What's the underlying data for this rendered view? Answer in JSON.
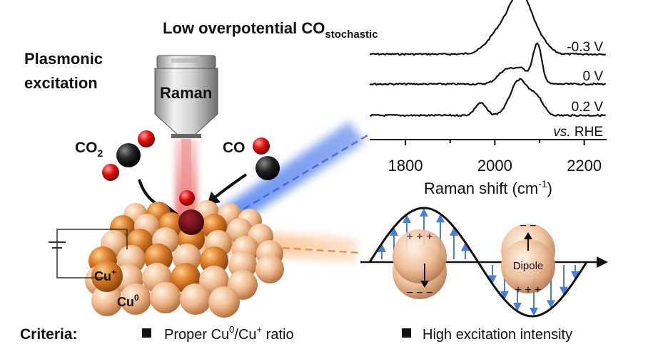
{
  "title": {
    "main": "Low overpotential CO",
    "sub": "stochastic"
  },
  "left": {
    "heading_line1": "Plasmonic",
    "heading_line2": "excitation",
    "raman_label": "Raman",
    "co2_main": "CO",
    "co2_sub": "2",
    "co_label": "CO",
    "cu_plus_main": "Cu",
    "cu_plus_sup": "+",
    "cu0_main": "Cu",
    "cu0_sup": "0"
  },
  "chart_data": {
    "type": "line",
    "xlabel": "Raman shift (cm",
    "xlabel_sup": "-1",
    "xlabel_tail": ")",
    "xlim": [
      1720,
      2250
    ],
    "x_ticks": [
      "1800",
      "2000",
      "2200"
    ],
    "reference_label_italic": "vs.",
    "reference_label_rest": " RHE",
    "series": [
      {
        "name": "-0.3 V",
        "peaks": [
          [
            2020,
            0.55,
            30
          ],
          [
            2060,
            1.0,
            22
          ],
          [
            2100,
            0.25,
            20
          ]
        ]
      },
      {
        "name": "0 V",
        "peaks": [
          [
            2025,
            0.35,
            18
          ],
          [
            2060,
            0.35,
            16
          ],
          [
            2095,
            1.0,
            10
          ]
        ]
      },
      {
        "name": "0.2 V",
        "peaks": [
          [
            1968,
            0.35,
            12
          ],
          [
            2055,
            1.0,
            20
          ],
          [
            2095,
            0.45,
            14
          ]
        ]
      }
    ]
  },
  "dipole": {
    "plus_top": "+ + +",
    "minus_bottom": "− − −",
    "minus_top": "− −",
    "plus_bottom": "+ + +",
    "dipole_label": "Dipole"
  },
  "criteria": {
    "label": "Criteria:",
    "item1_a": "Proper Cu",
    "item1_sup1": "0",
    "item1_b": "/Cu",
    "item1_sup2": "+",
    "item1_c": " ratio",
    "item2": "High excitation intensity"
  },
  "colors": {
    "blue_beam": "#4a7cf0",
    "orange_beam": "#f0a25a",
    "arrow_blue": "#4a7fd6",
    "red_beam": "#e56a6a"
  }
}
